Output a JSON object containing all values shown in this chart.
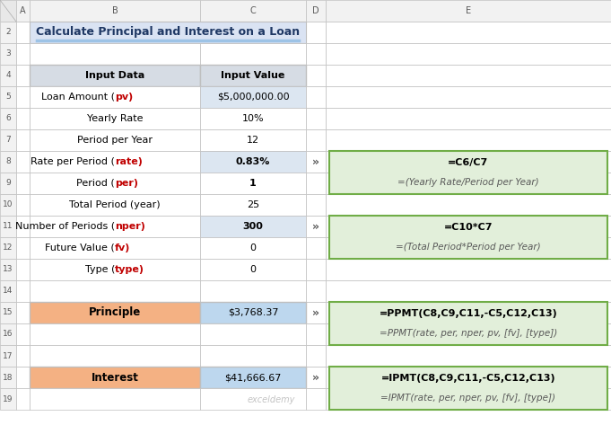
{
  "title": "Calculate Principal and Interest on a Loan",
  "col_headers": [
    "Input Data",
    "Input Value"
  ],
  "rows": [
    {
      "label": "Loan Amount ",
      "label_colored": "pv",
      "value": "$5,000,000.00",
      "label_color": "#c00000"
    },
    {
      "label": "Yearly Rate",
      "label_colored": "",
      "value": "10%",
      "label_color": null
    },
    {
      "label": "Period per Year",
      "label_colored": "",
      "value": "12",
      "label_color": null
    },
    {
      "label": "Rate per Period ",
      "label_colored": "rate",
      "value": "0.83%",
      "label_color": "#c00000"
    },
    {
      "label": "Period ",
      "label_colored": "per",
      "value": "1",
      "label_color": "#c00000"
    },
    {
      "label": "Total Period (year)",
      "label_colored": "",
      "value": "25",
      "label_color": null
    },
    {
      "label": "Number of Periods ",
      "label_colored": "nper",
      "value": "300",
      "label_color": "#c00000"
    },
    {
      "label": "Future Value ",
      "label_colored": "fv",
      "value": "0",
      "label_color": "#c00000"
    },
    {
      "label": "Type ",
      "label_colored": "type",
      "value": "0",
      "label_color": "#c00000"
    }
  ],
  "result_rows": [
    {
      "label": "Principle",
      "value": "$3,768.37"
    },
    {
      "label": "Interest",
      "value": "$41,666.67"
    }
  ],
  "formula_boxes": [
    {
      "line1": "=C6/C7",
      "line2": "=(Yearly Rate/Period per Year)"
    },
    {
      "line1": "=C10*C7",
      "line2": "=(Total Period*Period per Year)"
    },
    {
      "line1": "=PPMT(C8,C9,C11,-C5,C12,C13)",
      "line2": "=PPMT(rate, per, nper, pv, [fv], [type])"
    },
    {
      "line1": "=IPMT(C8,C9,C11,-C5,C12,C13)",
      "line2": "=IPMT(rate, per, nper, pv, [fv], [type])"
    }
  ],
  "col_header_row_bg": "#d6dce4",
  "formula_bg": "#e2efda",
  "formula_border": "#70ad47",
  "result_label_bg": "#f4b183",
  "result_value_bg": "#bdd7ee",
  "title_color": "#1f3864",
  "title_cell_bg": "#dae3f3",
  "title_underline_color": "#9dc3e6",
  "arrow_color": "#595959",
  "grid_color": "#bfbfbf",
  "row_num_bg": "#f2f2f2",
  "col_letter_bg": "#f2f2f2",
  "alt_row_bg": "#dce6f1",
  "value_bold_rows": [
    3,
    4,
    6
  ],
  "notes": "rows 8,9,11,12,13,15,18 have bold values; rows alt colored at 5,7,9,11,13"
}
